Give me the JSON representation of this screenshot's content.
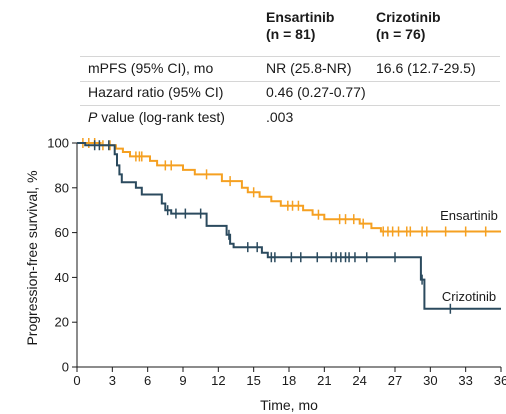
{
  "stats_table": {
    "groups": [
      {
        "name": "Ensartinib",
        "n": "(n = 81)"
      },
      {
        "name": "Crizotinib",
        "n": "(n = 76)"
      }
    ],
    "rows": [
      {
        "label_em": "",
        "label": "mPFS (95% CI), mo",
        "values": [
          "NR (25.8-NR)",
          "16.6 (12.7-29.5)"
        ]
      },
      {
        "label_em": "",
        "label": "Hazard ratio (95% CI)",
        "values": [
          "0.46 (0.27-0.77)"
        ]
      },
      {
        "label_em": "P",
        "label": " value (log-rank test)",
        "values": [
          ".003"
        ]
      }
    ]
  },
  "chart_data": {
    "type": "line",
    "step": true,
    "xlabel": "Time, mo",
    "ylabel": "Progression-free survival, %",
    "xlim": [
      0,
      36
    ],
    "ylim": [
      0,
      100
    ],
    "xticks": [
      0,
      3,
      6,
      9,
      12,
      15,
      18,
      21,
      24,
      27,
      30,
      33,
      36
    ],
    "yticks": [
      0,
      20,
      40,
      60,
      80,
      100
    ],
    "grid": false,
    "series": [
      {
        "name": "Ensartinib",
        "color": "#f5a021",
        "points": [
          [
            0,
            100
          ],
          [
            2.0,
            100
          ],
          [
            2.0,
            99
          ],
          [
            3.3,
            99
          ],
          [
            3.3,
            97.5
          ],
          [
            3.9,
            97.5
          ],
          [
            3.9,
            96
          ],
          [
            4.5,
            96
          ],
          [
            4.5,
            94
          ],
          [
            6.2,
            94
          ],
          [
            6.2,
            92
          ],
          [
            6.8,
            92
          ],
          [
            6.8,
            90
          ],
          [
            9.0,
            90
          ],
          [
            9.0,
            88
          ],
          [
            10.0,
            88
          ],
          [
            10.0,
            86
          ],
          [
            12.3,
            86
          ],
          [
            12.3,
            83
          ],
          [
            14.0,
            83
          ],
          [
            14.0,
            80
          ],
          [
            14.5,
            80
          ],
          [
            14.5,
            78
          ],
          [
            15.5,
            78
          ],
          [
            15.5,
            76
          ],
          [
            16.5,
            76
          ],
          [
            16.5,
            74
          ],
          [
            17.3,
            74
          ],
          [
            17.3,
            72
          ],
          [
            19.2,
            72
          ],
          [
            19.2,
            70
          ],
          [
            20.0,
            70
          ],
          [
            20.0,
            68
          ],
          [
            21.0,
            68
          ],
          [
            21.0,
            66
          ],
          [
            24.0,
            66
          ],
          [
            24.0,
            64
          ],
          [
            25.0,
            64
          ],
          [
            25.0,
            62
          ],
          [
            25.8,
            62
          ],
          [
            25.8,
            60.5
          ],
          [
            36,
            60.5
          ]
        ],
        "censored": [
          [
            0.5,
            100
          ],
          [
            1.0,
            100
          ],
          [
            1.5,
            100
          ],
          [
            2.2,
            99
          ],
          [
            2.8,
            99
          ],
          [
            5.0,
            94
          ],
          [
            5.3,
            94
          ],
          [
            5.5,
            94
          ],
          [
            7.5,
            90
          ],
          [
            8.0,
            90
          ],
          [
            11.0,
            86
          ],
          [
            13.0,
            83
          ],
          [
            15.0,
            78
          ],
          [
            17.9,
            72
          ],
          [
            18.3,
            72
          ],
          [
            18.8,
            72
          ],
          [
            20.5,
            68
          ],
          [
            22.3,
            66
          ],
          [
            22.8,
            66
          ],
          [
            23.5,
            66
          ],
          [
            24.3,
            64
          ],
          [
            26.0,
            60.5
          ],
          [
            26.4,
            60.5
          ],
          [
            26.8,
            60.5
          ],
          [
            27.3,
            60.5
          ],
          [
            28.0,
            60.5
          ],
          [
            28.3,
            60.5
          ],
          [
            29.3,
            60.5
          ],
          [
            29.7,
            60.5
          ],
          [
            31.3,
            60.5
          ],
          [
            33.0,
            60.5
          ],
          [
            34.7,
            60.5
          ]
        ]
      },
      {
        "name": "Crizotinib",
        "color": "#2b4a5e",
        "points": [
          [
            0,
            100
          ],
          [
            0.7,
            100
          ],
          [
            0.7,
            99
          ],
          [
            3.2,
            99
          ],
          [
            3.2,
            95
          ],
          [
            3.4,
            95
          ],
          [
            3.4,
            90
          ],
          [
            3.6,
            90
          ],
          [
            3.6,
            86
          ],
          [
            3.8,
            86
          ],
          [
            3.8,
            82.5
          ],
          [
            5.0,
            82.5
          ],
          [
            5.0,
            80
          ],
          [
            5.5,
            80
          ],
          [
            5.5,
            77
          ],
          [
            7.2,
            77
          ],
          [
            7.2,
            73
          ],
          [
            7.5,
            73
          ],
          [
            7.5,
            70
          ],
          [
            8.0,
            70
          ],
          [
            8.0,
            68.5
          ],
          [
            11.0,
            68.5
          ],
          [
            11.0,
            63
          ],
          [
            12.7,
            63
          ],
          [
            12.7,
            59
          ],
          [
            13.0,
            59
          ],
          [
            13.0,
            55
          ],
          [
            13.3,
            55
          ],
          [
            13.3,
            53.5
          ],
          [
            15.7,
            53.5
          ],
          [
            15.7,
            51
          ],
          [
            16.2,
            51
          ],
          [
            16.2,
            49
          ],
          [
            29.2,
            49
          ],
          [
            29.2,
            39
          ],
          [
            29.5,
            39
          ],
          [
            29.5,
            26
          ],
          [
            36,
            26
          ]
        ],
        "censored": [
          [
            1.5,
            99
          ],
          [
            1.9,
            99
          ],
          [
            2.7,
            99
          ],
          [
            7.7,
            70
          ],
          [
            8.4,
            68.5
          ],
          [
            9.2,
            68.5
          ],
          [
            10.5,
            68.5
          ],
          [
            12.9,
            59
          ],
          [
            14.5,
            53.5
          ],
          [
            15.3,
            53.5
          ],
          [
            16.5,
            49
          ],
          [
            16.8,
            49
          ],
          [
            18.2,
            49
          ],
          [
            19.0,
            49
          ],
          [
            20.4,
            49
          ],
          [
            21.6,
            49
          ],
          [
            22.0,
            49
          ],
          [
            22.4,
            49
          ],
          [
            22.8,
            49
          ],
          [
            23.1,
            49
          ],
          [
            23.6,
            49
          ],
          [
            24.6,
            49
          ],
          [
            27.0,
            49
          ],
          [
            29.3,
            39
          ],
          [
            31.7,
            26
          ]
        ]
      }
    ]
  }
}
